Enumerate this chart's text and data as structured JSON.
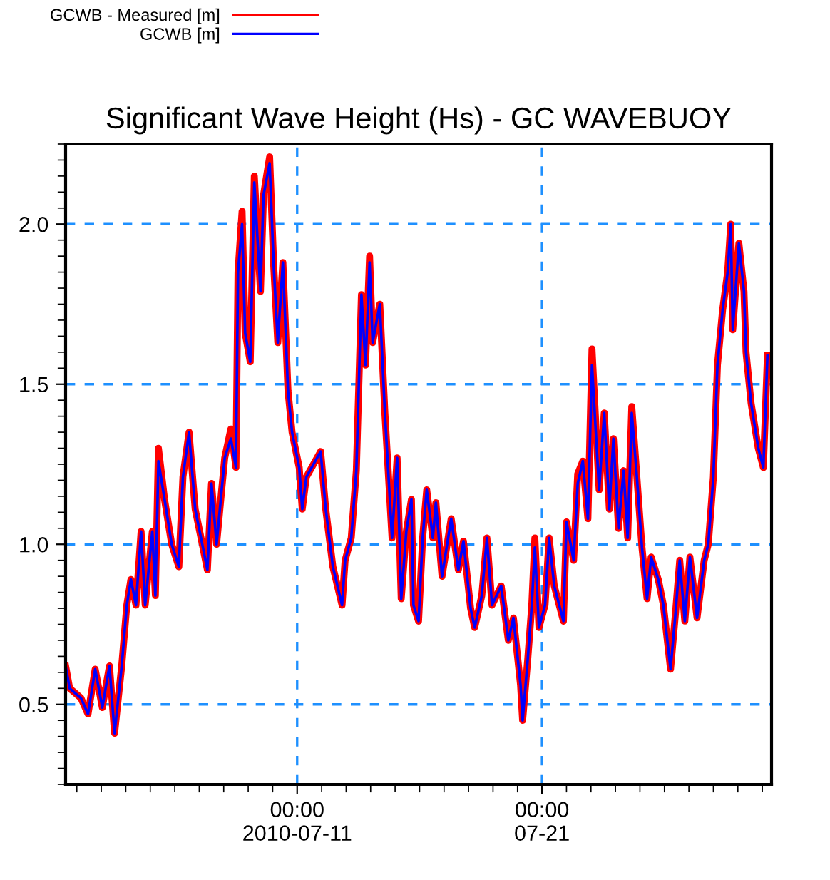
{
  "chart_data": {
    "type": "line",
    "title": "Significant Wave Height (Hs) - GC WAVEBUOY",
    "x": [
      "2010-07-01T13:00",
      "2010-07-01T17:00",
      "2010-07-02T04:00",
      "2010-07-02T11:00",
      "2010-07-02T18:00",
      "2010-07-03T01:00",
      "2010-07-03T08:00",
      "2010-07-03T13:00",
      "2010-07-03T20:00",
      "2010-07-04T01:00",
      "2010-07-04T05:00",
      "2010-07-04T10:00",
      "2010-07-04T15:00",
      "2010-07-04T19:00",
      "2010-07-05T02:00",
      "2010-07-05T05:00",
      "2010-07-05T08:00",
      "2010-07-05T14:00",
      "2010-07-05T21:00",
      "2010-07-06T04:00",
      "2010-07-06T08:00",
      "2010-07-06T14:00",
      "2010-07-06T20:00",
      "2010-07-07T03:00",
      "2010-07-07T08:00",
      "2010-07-07T12:00",
      "2010-07-07T17:00",
      "2010-07-07T22:00",
      "2010-07-08T01:00",
      "2010-07-08T07:00",
      "2010-07-08T12:00",
      "2010-07-08T14:00",
      "2010-07-08T18:00",
      "2010-07-08T21:00",
      "2010-07-09T02:00",
      "2010-07-09T06:00",
      "2010-07-09T12:00",
      "2010-07-09T15:00",
      "2010-07-09T21:00",
      "2010-07-10T01:00",
      "2010-07-10T05:00",
      "2010-07-10T10:00",
      "2010-07-10T15:00",
      "2010-07-10T19:00",
      "2010-07-11T02:00",
      "2010-07-11T05:00",
      "2010-07-11T09:00",
      "2010-07-11T23:00",
      "2010-07-12T04:00",
      "2010-07-12T11:00",
      "2010-07-12T20:00",
      "2010-07-12T23:00",
      "2010-07-13T05:00",
      "2010-07-13T10:00",
      "2010-07-13T15:00",
      "2010-07-13T19:00",
      "2010-07-13T23:00",
      "2010-07-14T02:00",
      "2010-07-14T09:00",
      "2010-07-14T14:00",
      "2010-07-14T21:00",
      "2010-07-15T02:00",
      "2010-07-15T06:00",
      "2010-07-15T11:00",
      "2010-07-15T16:00",
      "2010-07-15T18:00",
      "2010-07-15T23:00",
      "2010-07-16T03:00",
      "2010-07-16T07:00",
      "2010-07-16T13:00",
      "2010-07-16T16:00",
      "2010-07-16T22:00",
      "2010-07-17T07:00",
      "2010-07-17T14:00",
      "2010-07-17T19:00",
      "2010-07-18T02:00",
      "2010-07-18T06:00",
      "2010-07-18T13:00",
      "2010-07-18T18:00",
      "2010-07-18T23:00",
      "2010-07-19T08:00",
      "2010-07-19T15:00",
      "2010-07-19T20:00",
      "2010-07-20T03:00",
      "2010-07-20T05:00",
      "2010-07-20T10:00",
      "2010-07-20T14:00",
      "2010-07-20T17:00",
      "2010-07-20T21:00",
      "2010-07-21T03:00",
      "2010-07-21T07:00",
      "2010-07-21T12:00",
      "2010-07-21T21:00",
      "2010-07-22T00:00",
      "2010-07-22T07:00",
      "2010-07-22T11:00",
      "2010-07-22T16:00",
      "2010-07-22T21:00",
      "2010-07-23T01:00",
      "2010-07-23T08:00",
      "2010-07-23T13:00",
      "2010-07-23T18:00",
      "2010-07-23T22:00",
      "2010-07-24T03:00",
      "2010-07-24T08:00",
      "2010-07-24T12:00",
      "2010-07-24T16:00",
      "2010-07-24T21:00",
      "2010-07-25T02:00",
      "2010-07-25T07:00",
      "2010-07-25T11:00",
      "2010-07-25T18:00",
      "2010-07-25T23:00",
      "2010-07-26T06:00",
      "2010-07-26T11:00",
      "2010-07-26T15:00",
      "2010-07-26T20:00",
      "2010-07-27T01:00",
      "2010-07-27T08:00",
      "2010-07-27T15:00",
      "2010-07-27T19:00",
      "2010-07-28T00:00",
      "2010-07-28T04:00",
      "2010-07-28T09:00",
      "2010-07-28T14:00",
      "2010-07-28T17:00",
      "2010-07-28T19:00",
      "2010-07-29T01:00",
      "2010-07-29T06:00",
      "2010-07-29T08:00",
      "2010-07-29T13:00",
      "2010-07-29T20:00",
      "2010-07-30T01:00",
      "2010-07-30T05:00"
    ],
    "series": [
      {
        "name": "GCWB - Measured [m]",
        "color": "#ff0000",
        "values": [
          0.62,
          0.55,
          0.52,
          0.47,
          0.61,
          0.49,
          0.62,
          0.41,
          0.62,
          0.81,
          0.89,
          0.81,
          1.04,
          0.81,
          1.04,
          0.84,
          1.3,
          1.14,
          1.0,
          0.93,
          1.21,
          1.35,
          1.11,
          1.0,
          0.92,
          1.19,
          1.0,
          1.17,
          1.27,
          1.36,
          1.24,
          1.85,
          2.04,
          1.66,
          1.57,
          2.15,
          1.79,
          2.09,
          2.21,
          1.87,
          1.63,
          1.88,
          1.48,
          1.35,
          1.24,
          1.11,
          1.21,
          1.29,
          1.11,
          0.93,
          0.81,
          0.95,
          1.02,
          1.23,
          1.78,
          1.56,
          1.9,
          1.63,
          1.75,
          1.41,
          1.02,
          1.27,
          0.83,
          1.04,
          1.14,
          0.81,
          0.76,
          1.02,
          1.17,
          1.02,
          1.13,
          0.9,
          1.08,
          0.92,
          1.01,
          0.8,
          0.74,
          0.84,
          1.02,
          0.81,
          0.87,
          0.7,
          0.77,
          0.56,
          0.45,
          0.64,
          0.81,
          1.02,
          0.74,
          0.81,
          1.02,
          0.87,
          0.76,
          1.07,
          0.95,
          1.22,
          1.26,
          1.08,
          1.61,
          1.17,
          1.41,
          1.11,
          1.33,
          1.05,
          1.23,
          1.02,
          1.43,
          1.21,
          0.99,
          0.83,
          0.96,
          0.89,
          0.81,
          0.61,
          0.79,
          0.95,
          0.76,
          0.96,
          0.77,
          0.95,
          1.0,
          1.21,
          1.56,
          1.73,
          1.85,
          2.0,
          1.67,
          1.94,
          1.79,
          1.6,
          1.44,
          1.3,
          1.24,
          1.59
        ]
      },
      {
        "name": "GCWB [m]",
        "color": "#0000ff",
        "values": [
          0.62,
          0.55,
          0.52,
          0.47,
          0.61,
          0.49,
          0.62,
          0.41,
          0.62,
          0.81,
          0.89,
          0.81,
          1.04,
          0.81,
          1.04,
          0.84,
          1.26,
          1.14,
          1.0,
          0.93,
          1.21,
          1.35,
          1.11,
          1.0,
          0.92,
          1.19,
          1.0,
          1.17,
          1.27,
          1.33,
          1.24,
          1.85,
          2.0,
          1.66,
          1.57,
          2.13,
          1.79,
          2.09,
          2.19,
          1.87,
          1.63,
          1.88,
          1.48,
          1.35,
          1.24,
          1.11,
          1.21,
          1.29,
          1.11,
          0.93,
          0.81,
          0.95,
          1.02,
          1.23,
          1.78,
          1.56,
          1.88,
          1.63,
          1.75,
          1.41,
          1.02,
          1.27,
          0.83,
          1.04,
          1.14,
          0.81,
          0.76,
          1.02,
          1.17,
          1.02,
          1.13,
          0.9,
          1.08,
          0.92,
          1.01,
          0.8,
          0.74,
          0.84,
          1.02,
          0.81,
          0.87,
          0.7,
          0.77,
          0.56,
          0.45,
          0.64,
          0.81,
          0.99,
          0.74,
          0.81,
          1.02,
          0.87,
          0.76,
          1.07,
          0.95,
          1.19,
          1.26,
          1.08,
          1.56,
          1.17,
          1.41,
          1.11,
          1.33,
          1.05,
          1.23,
          1.02,
          1.41,
          1.21,
          0.99,
          0.83,
          0.96,
          0.89,
          0.81,
          0.61,
          0.79,
          0.95,
          0.76,
          0.96,
          0.77,
          0.95,
          1.0,
          1.21,
          1.56,
          1.73,
          1.85,
          2.0,
          1.67,
          1.94,
          1.79,
          1.6,
          1.44,
          1.3,
          1.24,
          1.59
        ]
      }
    ],
    "xlim": [
      "2010-07-01T13:00",
      "2010-07-30T09:00"
    ],
    "xticks": [
      {
        "value": "2010-07-11",
        "label": "00:00\n2010-07-11"
      },
      {
        "value": "2010-07-21",
        "label": "00:00\n07-21"
      }
    ],
    "ylim": [
      0.25,
      2.25
    ],
    "yticks": [
      {
        "value": 0.5,
        "label": "0.5"
      },
      {
        "value": 1.0,
        "label": "1.0"
      },
      {
        "value": 1.5,
        "label": "1.5"
      },
      {
        "value": 2.0,
        "label": "2.0"
      }
    ],
    "grid": true,
    "legend": "top left",
    "line_style": "solid",
    "marker": "none"
  }
}
